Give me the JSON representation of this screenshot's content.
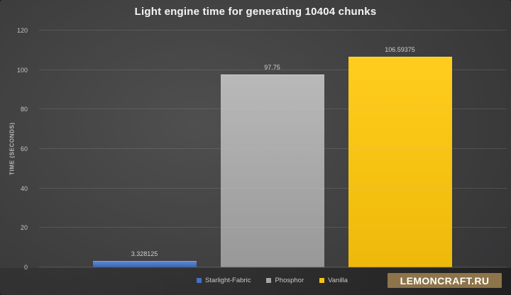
{
  "chart_data": {
    "type": "bar",
    "title": "Light engine time for generating 10404 chunks",
    "ylabel": "TIME (SECONDS)",
    "xlabel": "",
    "categories": [
      "Starlight-Fabric",
      "Phosphor",
      "Vanilla"
    ],
    "values": [
      3.328125,
      97.75,
      106.59375
    ],
    "value_labels": [
      "3.328125",
      "97.75",
      "106.59375"
    ],
    "ylim": [
      0,
      120
    ],
    "yticks": [
      0,
      20,
      40,
      60,
      80,
      100,
      120
    ],
    "grid": true,
    "legend_position": "bottom",
    "series_colors": [
      {
        "name": "Starlight-Fabric",
        "base": "#4472c4",
        "light": "#5d88d6",
        "dark": "#3a66b2"
      },
      {
        "name": "Phosphor",
        "base": "#a6a6a6",
        "light": "#b9b9b9",
        "dark": "#989898"
      },
      {
        "name": "Vanilla",
        "base": "#f6c213",
        "light": "#ffcd1d",
        "dark": "#eeb90a"
      }
    ]
  },
  "watermark": {
    "label": "LEMONCRAFT.RU",
    "background": "#8d744a"
  },
  "theme": {
    "background_center": "#4f4f50",
    "background_edge": "#242426",
    "gridline": "rgba(200,200,200,0.16)",
    "tick_text": "#c4c4c4",
    "title_text": "#f5f5f5"
  }
}
